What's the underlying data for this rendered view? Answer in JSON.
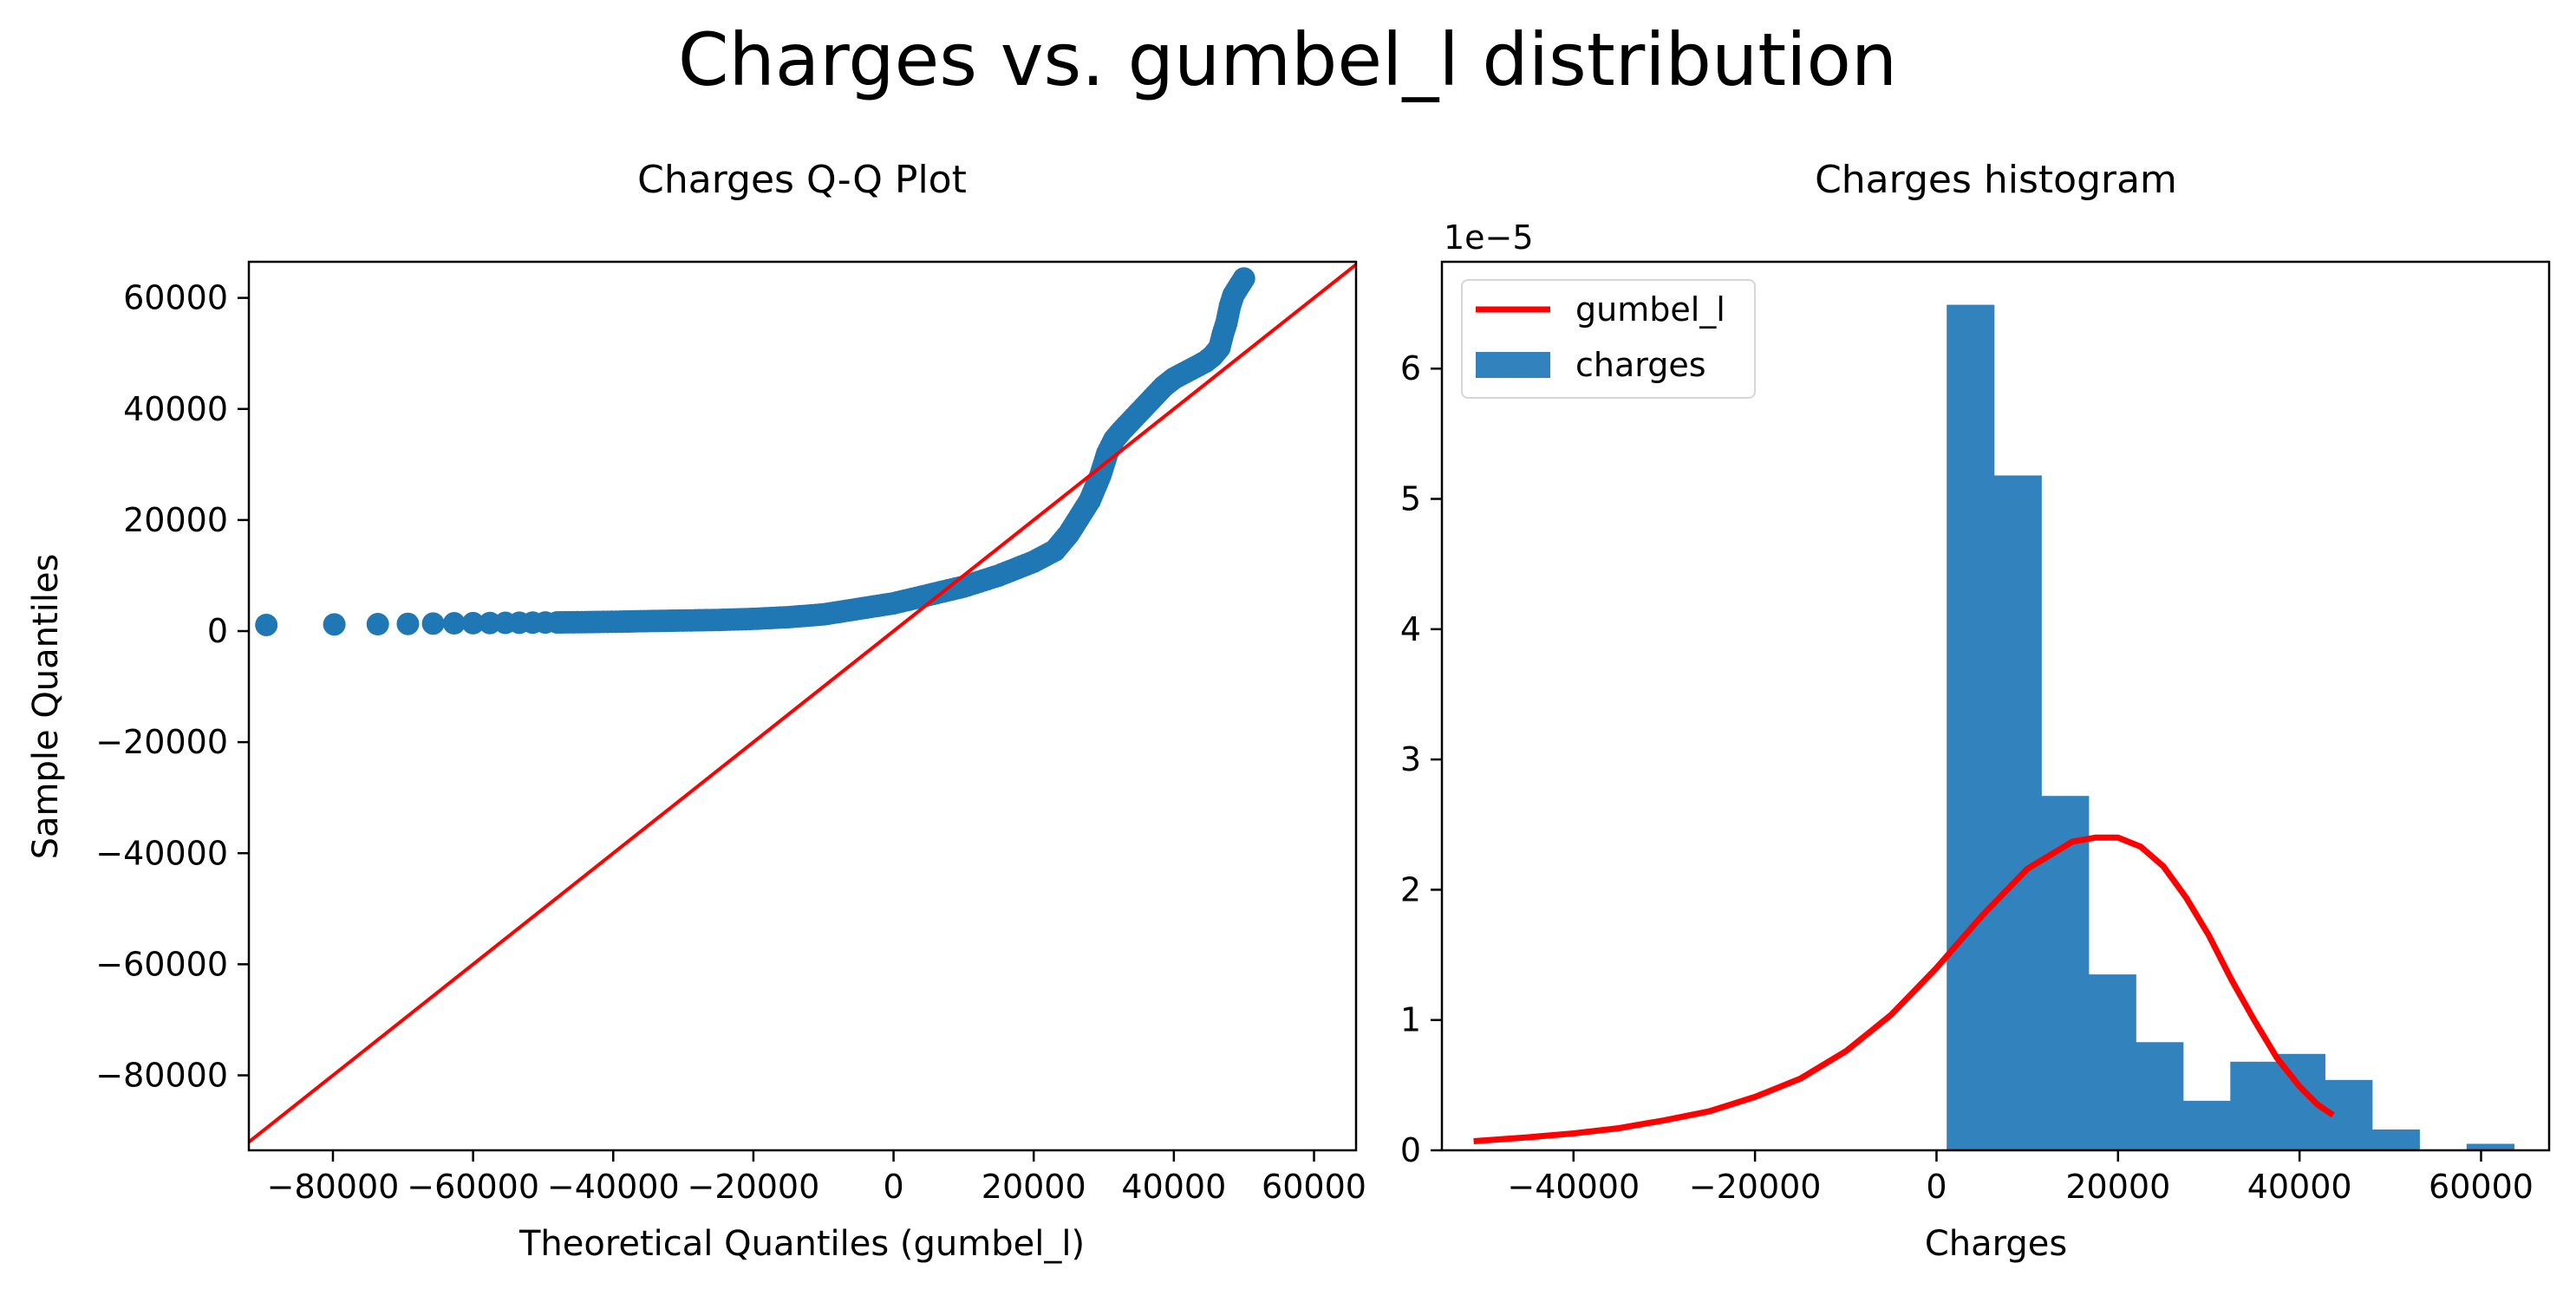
{
  "figure": {
    "title": "Charges vs. gumbel_l distribution"
  },
  "chart_data": [
    {
      "type": "scatter",
      "title": "Charges Q-Q Plot",
      "xlabel": "Theoretical Quantiles (gumbel_l)",
      "ylabel": "Sample Quantiles",
      "xlim": [
        -92000,
        66000
      ],
      "ylim": [
        -93500,
        66500
      ],
      "x_ticks": [
        -80000,
        -60000,
        -40000,
        -20000,
        0,
        20000,
        40000,
        60000
      ],
      "x_tick_labels": [
        "−80000",
        "−60000",
        "−40000",
        "−20000",
        "0",
        "20000",
        "40000",
        "60000"
      ],
      "y_ticks": [
        -80000,
        -60000,
        -40000,
        -20000,
        0,
        20000,
        40000,
        60000
      ],
      "y_tick_labels": [
        "−80000",
        "−60000",
        "−40000",
        "−20000",
        "0",
        "20000",
        "40000",
        "60000"
      ],
      "grid": false,
      "point_color": "#1f77b4",
      "reference_line": {
        "color": "#ff0000",
        "x": [
          -92000,
          66000
        ],
        "y": [
          -92000,
          66000
        ]
      },
      "points": {
        "x": [
          -89500,
          -79800,
          -73600,
          -69300,
          -65700,
          -62700,
          -60000,
          -57600,
          -55400,
          -53400,
          -51500,
          -49700,
          -48000,
          -46300,
          -44500,
          -42000,
          -39000,
          -35000,
          -30000,
          -25000,
          -20000,
          -15000,
          -10000,
          -5000,
          0,
          5000,
          10000,
          15000,
          20000,
          23000,
          25000,
          26500,
          28000,
          29500,
          30500,
          31500,
          32500,
          34000,
          35500,
          37000,
          38500,
          40000,
          41500,
          43000,
          44500,
          45500,
          46500,
          47000,
          47500,
          48000,
          48500,
          49000,
          49500,
          50000
        ],
        "y": [
          1100,
          1200,
          1250,
          1300,
          1350,
          1400,
          1420,
          1450,
          1480,
          1500,
          1520,
          1540,
          1560,
          1580,
          1600,
          1650,
          1700,
          1800,
          1900,
          2000,
          2200,
          2500,
          3000,
          4000,
          5000,
          6500,
          8000,
          10000,
          12500,
          14500,
          17500,
          20500,
          23500,
          28000,
          32000,
          34500,
          36000,
          38000,
          40000,
          42000,
          44000,
          45500,
          46500,
          47500,
          48500,
          49500,
          51000,
          53500,
          55500,
          58500,
          60500,
          61500,
          62500,
          63500
        ]
      }
    },
    {
      "type": "bar",
      "title": "Charges histogram",
      "xlabel": "Charges",
      "ylabel": "",
      "y_offset_text": "1e−5",
      "xlim": [
        -54500,
        67500
      ],
      "ylim": [
        0,
        6.82
      ],
      "x_ticks": [
        -40000,
        -20000,
        0,
        20000,
        40000,
        60000
      ],
      "x_tick_labels": [
        "−40000",
        "−20000",
        "0",
        "20000",
        "40000",
        "60000"
      ],
      "y_ticks": [
        0,
        1,
        2,
        3,
        4,
        5,
        6
      ],
      "y_tick_labels": [
        "0",
        "1",
        "2",
        "3",
        "4",
        "5",
        "6"
      ],
      "grid": false,
      "legend_position": "upper-left",
      "histogram": {
        "name": "charges",
        "color": "#3182bd",
        "bin_edges": [
          1122,
          6330,
          11540,
          16750,
          21950,
          27160,
          32370,
          37580,
          42790,
          47990,
          53200,
          58410,
          63620
        ],
        "values": [
          6.49,
          5.18,
          2.72,
          1.35,
          0.83,
          0.38,
          0.68,
          0.74,
          0.54,
          0.16,
          0.0,
          0.05
        ]
      },
      "series": [
        {
          "name": "gumbel_l",
          "color": "#ff0000",
          "x": [
            -51000,
            -45000,
            -40000,
            -35000,
            -30000,
            -25000,
            -20000,
            -15000,
            -10000,
            -5000,
            0,
            5000,
            10000,
            15000,
            17500,
            20000,
            22500,
            25000,
            27500,
            30000,
            32500,
            35000,
            37500,
            40000,
            42000,
            43700
          ],
          "y": [
            0.07,
            0.1,
            0.13,
            0.17,
            0.23,
            0.3,
            0.41,
            0.55,
            0.76,
            1.04,
            1.4,
            1.8,
            2.16,
            2.37,
            2.4,
            2.4,
            2.33,
            2.18,
            1.94,
            1.65,
            1.31,
            1.0,
            0.71,
            0.49,
            0.35,
            0.27
          ]
        }
      ]
    }
  ]
}
